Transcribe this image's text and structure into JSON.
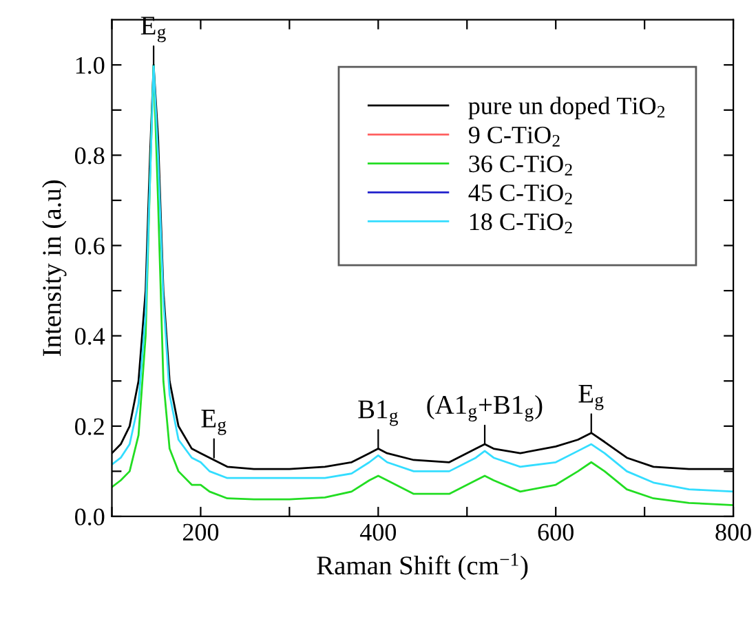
{
  "chart_data": {
    "type": "line",
    "xlabel": "Raman Shift (cm$^{−1}$)",
    "ylabel": "Intensity in (a.u)",
    "xlim": [
      100,
      800
    ],
    "xticks": [
      {
        "value": 100,
        "label": null
      },
      200,
      {
        "value": 300,
        "label": null
      },
      400,
      {
        "value": 500,
        "label": null
      },
      600,
      {
        "value": 700,
        "label": null
      },
      800
    ],
    "ylim": [
      0,
      1.1
    ],
    "yticks": [
      {
        "value": 0,
        "label": "0.0"
      },
      {
        "value": 0.1,
        "label": null
      },
      0.2,
      {
        "value": 0.3,
        "label": null
      },
      0.4,
      {
        "value": 0.5,
        "label": null
      },
      0.6,
      {
        "value": 0.7,
        "label": null
      },
      0.8,
      {
        "value": 0.9,
        "label": null
      },
      {
        "value": 1,
        "label": "1.0"
      }
    ],
    "grid": false,
    "legend": "top right",
    "marker": "none",
    "line_style": "solid",
    "annotations": [
      {
        "text": "E$_{g}$",
        "x": 147,
        "y": 1.0
      },
      {
        "text": "E$_{g}$",
        "x": 215,
        "y": 0.13
      },
      {
        "text": "B1$_{g}$",
        "x": 400,
        "y": 0.15
      },
      {
        "text": "(A1$_{g}$+B1$_{g}$)",
        "x": 520,
        "y": 0.16
      },
      {
        "text": "E$_{g}$",
        "x": 640,
        "y": 0.185
      }
    ],
    "x": [
      100,
      110,
      120,
      130,
      138,
      143,
      147,
      152,
      158,
      165,
      175,
      190,
      200,
      210,
      230,
      260,
      300,
      340,
      370,
      390,
      400,
      410,
      440,
      480,
      510,
      520,
      530,
      560,
      600,
      625,
      640,
      655,
      680,
      710,
      750,
      800
    ],
    "series": [
      {
        "name": "pure un doped TiO$_{2}$",
        "color": "#000000",
        "values": [
          0.14,
          0.16,
          0.2,
          0.3,
          0.5,
          0.8,
          1.0,
          0.84,
          0.5,
          0.3,
          0.2,
          0.15,
          0.14,
          0.13,
          0.11,
          0.105,
          0.105,
          0.11,
          0.12,
          0.14,
          0.15,
          0.14,
          0.125,
          0.12,
          0.15,
          0.16,
          0.15,
          0.14,
          0.155,
          0.17,
          0.185,
          0.165,
          0.13,
          0.11,
          0.105,
          0.105
        ]
      },
      {
        "name": "9 C-TiO$_{2}$",
        "color": "#ff6060",
        "values": [
          null,
          null,
          null,
          null,
          null,
          null,
          null,
          null,
          null,
          null,
          null,
          null,
          null,
          null,
          null,
          null,
          null,
          null,
          null,
          null,
          null,
          null,
          null,
          null,
          null,
          null,
          null,
          null,
          null,
          null,
          null,
          null,
          null,
          null,
          null,
          null
        ]
      },
      {
        "name": "36 C-TiO$_{2}$",
        "color": "#22dd22",
        "values": [
          0.065,
          0.08,
          0.1,
          0.18,
          0.4,
          0.75,
          1.0,
          0.7,
          0.3,
          0.15,
          0.1,
          0.07,
          0.07,
          0.055,
          0.04,
          0.038,
          0.038,
          0.042,
          0.055,
          0.08,
          0.09,
          0.08,
          0.05,
          0.05,
          0.08,
          0.09,
          0.08,
          0.055,
          0.07,
          0.1,
          0.12,
          0.1,
          0.06,
          0.04,
          0.03,
          0.025
        ]
      },
      {
        "name": "45 C-TiO$_{2}$",
        "color": "#2020cc",
        "values": [
          null,
          null,
          null,
          null,
          null,
          null,
          null,
          null,
          null,
          null,
          null,
          null,
          null,
          null,
          null,
          null,
          null,
          null,
          null,
          null,
          null,
          null,
          null,
          null,
          null,
          null,
          null,
          null,
          null,
          null,
          null,
          null,
          null,
          null,
          null,
          null
        ]
      },
      {
        "name": "18 C-TiO$_{2}$",
        "color": "#33ddff",
        "values": [
          0.115,
          0.13,
          0.16,
          0.25,
          0.45,
          0.75,
          1.0,
          0.8,
          0.48,
          0.27,
          0.17,
          0.13,
          0.12,
          0.1,
          0.085,
          0.085,
          0.085,
          0.085,
          0.095,
          0.12,
          0.135,
          0.12,
          0.1,
          0.1,
          0.13,
          0.145,
          0.13,
          0.11,
          0.12,
          0.145,
          0.16,
          0.14,
          0.1,
          0.075,
          0.06,
          0.055
        ]
      }
    ]
  }
}
